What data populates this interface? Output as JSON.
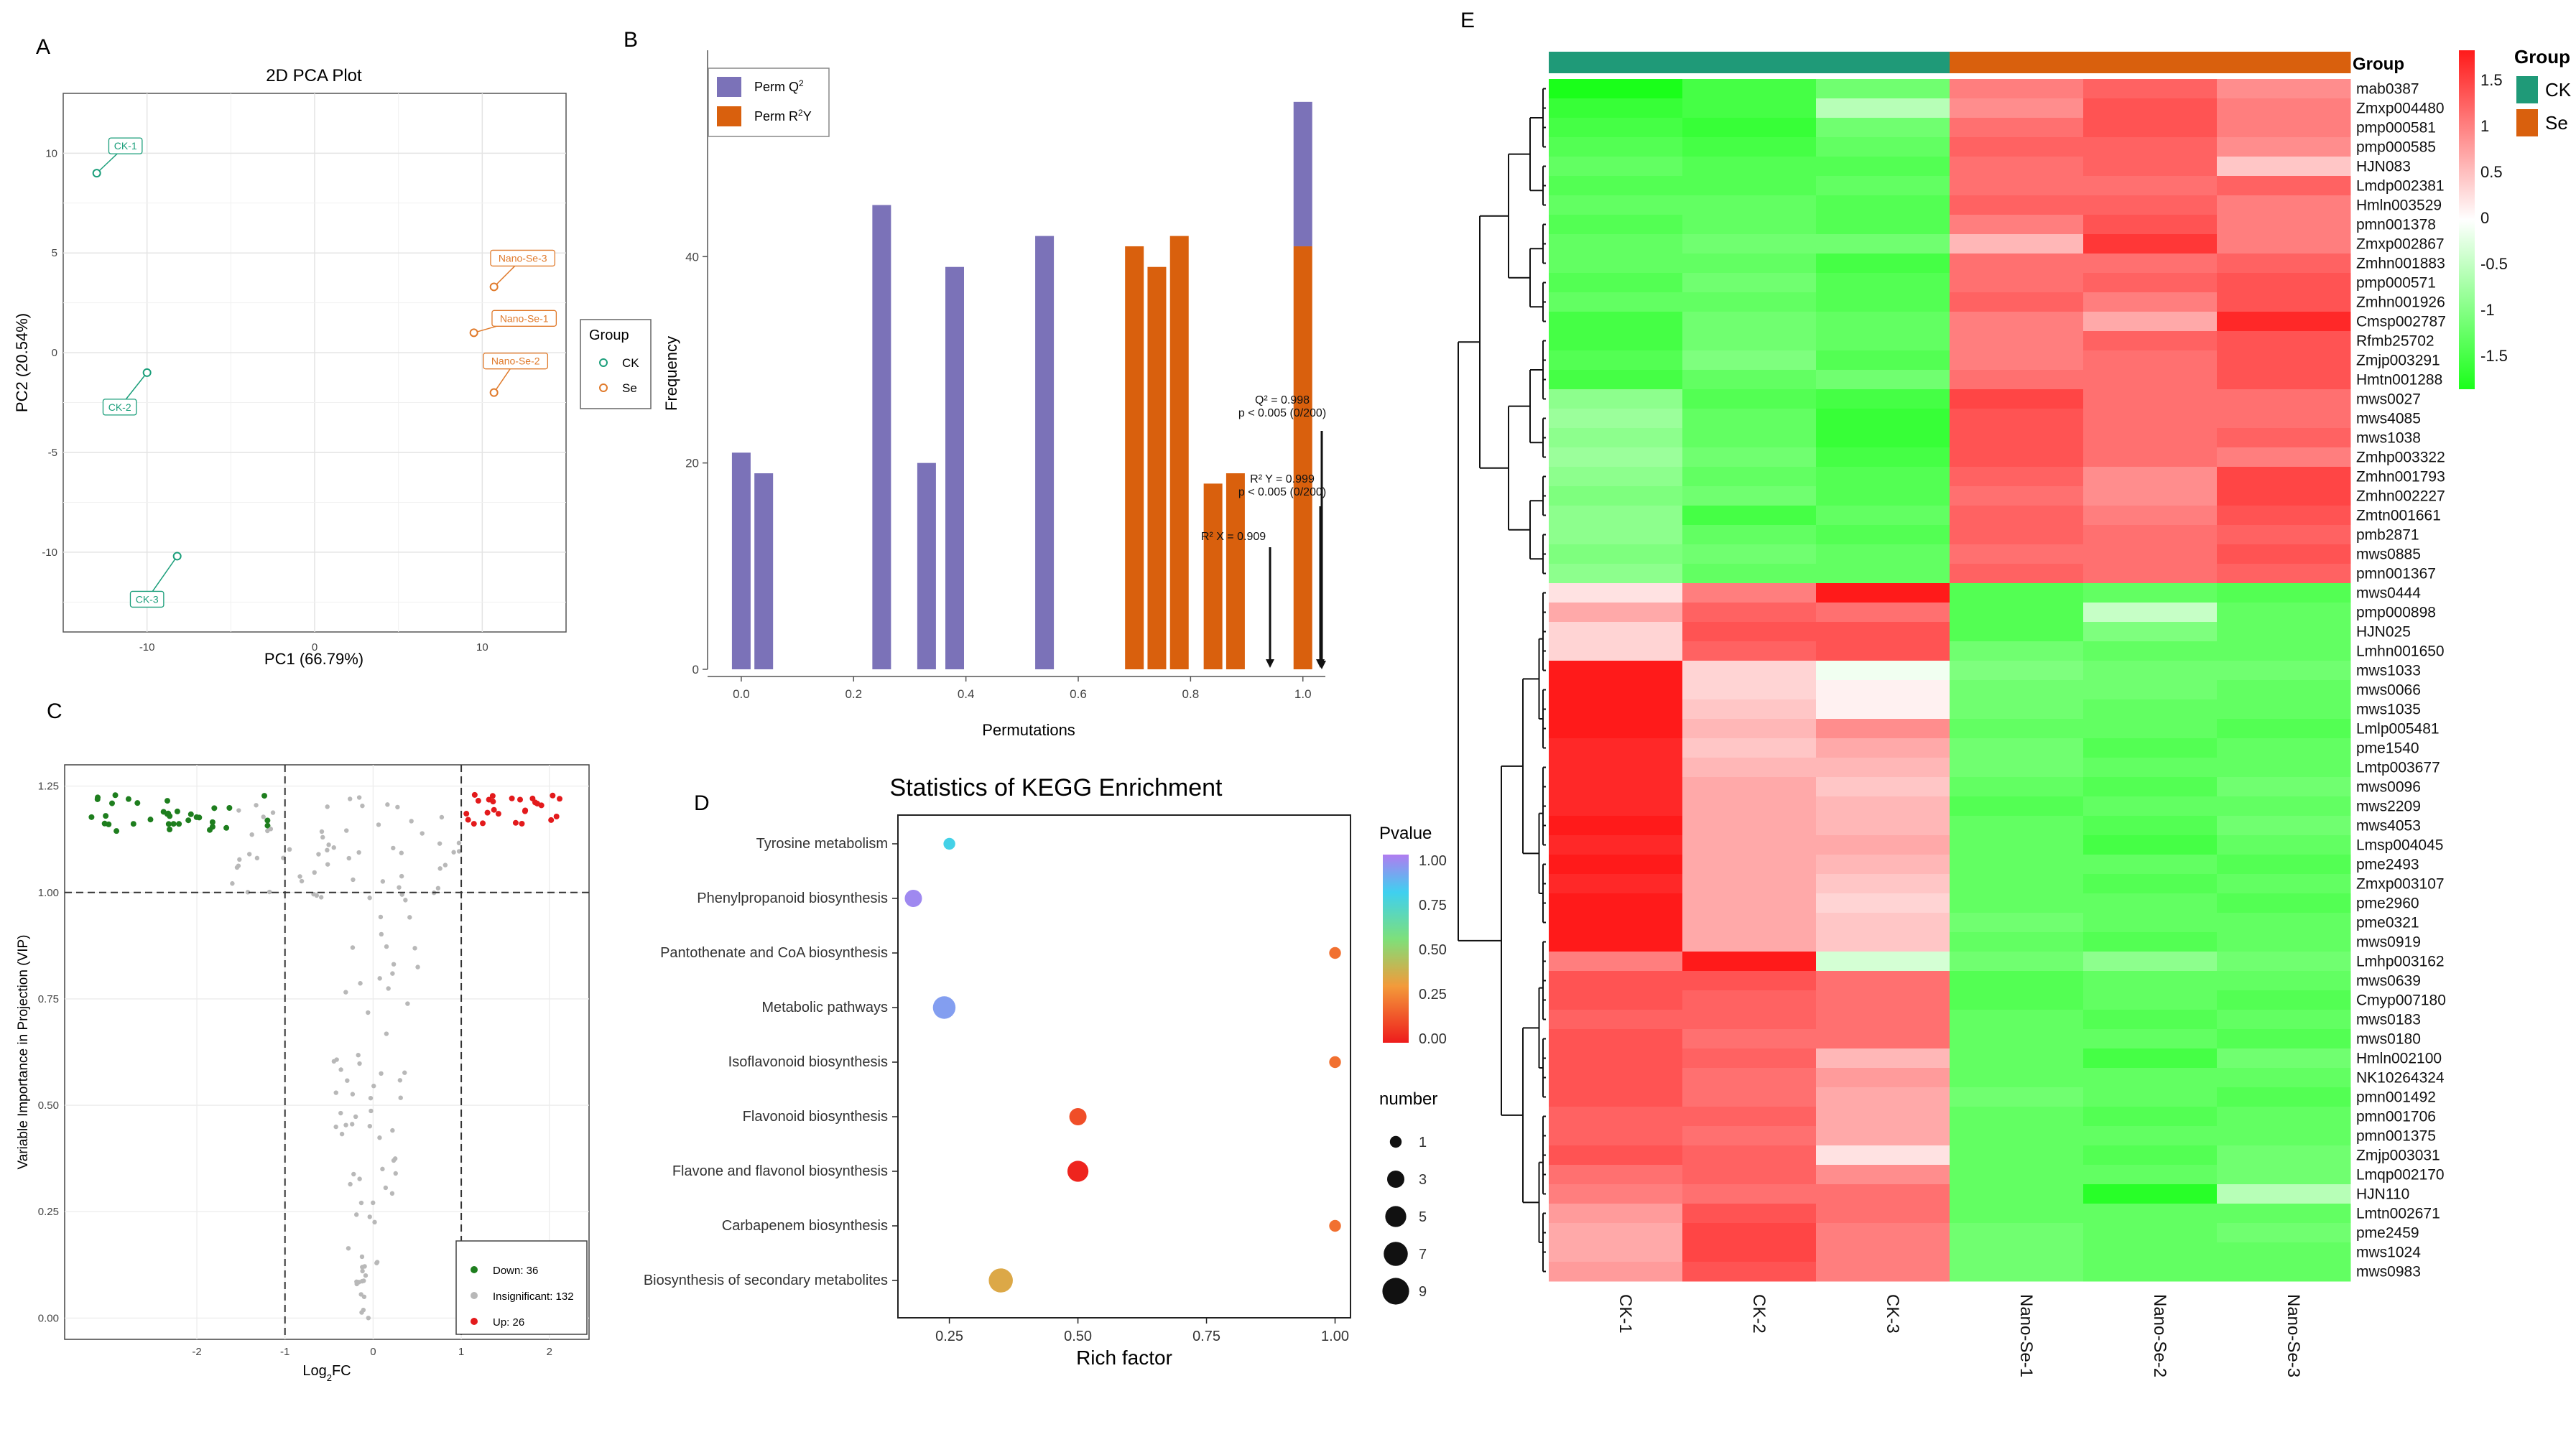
{
  "panels": {
    "A": "A",
    "B": "B",
    "C": "C",
    "D": "D",
    "E": "E"
  },
  "colors": {
    "ck": "#1a9e7a",
    "se": "#e07a2b",
    "perm_q2": "#7b72b8",
    "perm_r2y": "#d9600d",
    "down": "#1e7e1e",
    "up": "#e31a1c",
    "insig": "#b8b8b8"
  },
  "chart_data": [
    {
      "id": "pca",
      "type": "scatter",
      "title": "2D PCA Plot",
      "xlabel": "PC1 (66.79%)",
      "ylabel": "PC2 (20.54%)",
      "xlim": [
        -15,
        15
      ],
      "ylim": [
        -14,
        13
      ],
      "xticks": [
        -10,
        0,
        10
      ],
      "yticks": [
        -10,
        -5,
        0,
        5,
        10
      ],
      "legend_title": "Group",
      "legend": [
        {
          "label": "CK",
          "color": "#1a9e7a"
        },
        {
          "label": "Se",
          "color": "#e07a2b"
        }
      ],
      "points": [
        {
          "label": "CK-1",
          "group": "CK",
          "x": -13,
          "y": 9
        },
        {
          "label": "CK-2",
          "group": "CK",
          "x": -10,
          "y": -1
        },
        {
          "label": "CK-3",
          "group": "CK",
          "x": -8.2,
          "y": -10.2
        },
        {
          "label": "Nano-Se-1",
          "group": "Se",
          "x": 9.5,
          "y": 1
        },
        {
          "label": "Nano-Se-2",
          "group": "Se",
          "x": 10.7,
          "y": -2
        },
        {
          "label": "Nano-Se-3",
          "group": "Se",
          "x": 10.7,
          "y": 3.3
        }
      ]
    },
    {
      "id": "perm",
      "type": "bar",
      "xlabel": "Permutations",
      "ylabel": "Frequency",
      "xlim": [
        -0.06,
        1.04
      ],
      "ylim": [
        0,
        60
      ],
      "xticks": [
        0.0,
        0.2,
        0.4,
        0.6,
        0.8,
        1.0
      ],
      "yticks": [
        0,
        20,
        40
      ],
      "legend": [
        {
          "label": "Perm Q2",
          "color": "#7b72b8"
        },
        {
          "label": "Perm R2Y",
          "color": "#d9600d"
        }
      ],
      "series": [
        {
          "name": "Perm Q2",
          "bars": [
            {
              "x": 0.0,
              "v": 21
            },
            {
              "x": 0.04,
              "v": 19
            },
            {
              "x": 0.25,
              "v": 45
            },
            {
              "x": 0.33,
              "v": 20
            },
            {
              "x": 0.38,
              "v": 39
            },
            {
              "x": 0.54,
              "v": 42
            },
            {
              "x": 1.0,
              "v": 55
            }
          ]
        },
        {
          "name": "Perm R2Y",
          "bars": [
            {
              "x": 0.7,
              "v": 41
            },
            {
              "x": 0.74,
              "v": 39
            },
            {
              "x": 0.78,
              "v": 42
            },
            {
              "x": 0.84,
              "v": 18
            },
            {
              "x": 0.88,
              "v": 19
            },
            {
              "x": 1.0,
              "v": 41
            }
          ]
        }
      ],
      "annotations": [
        {
          "lines": [
            "Q² = 0.998",
            "p < 0.005 (0/200)"
          ],
          "x": 0.998,
          "y": 21
        },
        {
          "lines": [
            "R² Y = 0.999",
            "p < 0.005 (0/200)"
          ],
          "x": 0.999,
          "y": 13
        },
        {
          "lines": [
            "R² X = 0.909"
          ],
          "x": 0.909,
          "y": 11
        }
      ]
    },
    {
      "id": "volcano",
      "type": "scatter",
      "xlabel": "Log2FC",
      "ylabel": "Variable Importance in Projection (VIP)",
      "xlim": [
        -3.5,
        2.45
      ],
      "ylim": [
        -0.05,
        1.3
      ],
      "xticks": [
        -2,
        -1,
        0,
        1,
        2
      ],
      "yticks": [
        0.0,
        0.25,
        0.5,
        0.75,
        1.0,
        1.25
      ],
      "vlines": [
        -1,
        1
      ],
      "hline": 1.0,
      "legend": [
        {
          "label": "Down: 36",
          "color": "#1e7e1e"
        },
        {
          "label": "Insignificant: 132",
          "color": "#b8b8b8"
        },
        {
          "label": "Up: 26",
          "color": "#e31a1c"
        }
      ],
      "counts": {
        "down": 36,
        "insig": 132,
        "up": 26
      }
    },
    {
      "id": "kegg",
      "type": "scatter",
      "title": "Statistics of KEGG Enrichment",
      "xlabel": "Rich factor",
      "xlim": [
        0.15,
        1.03
      ],
      "xticks": [
        0.25,
        0.5,
        0.75,
        1.0
      ],
      "categories": [
        "Tyrosine metabolism",
        "Phenylpropanoid biosynthesis",
        "Pantothenate and CoA biosynthesis",
        "Metabolic pathways",
        "Isoflavonoid biosynthesis",
        "Flavonoid biosynthesis",
        "Flavone and flavonol biosynthesis",
        "Carbapenem biosynthesis",
        "Biosynthesis of secondary metabolites"
      ],
      "points": [
        {
          "category": "Tyrosine metabolism",
          "rich": 0.25,
          "number": 1,
          "p": 0.78
        },
        {
          "category": "Phenylpropanoid biosynthesis",
          "rich": 0.18,
          "number": 3,
          "p": 0.97
        },
        {
          "category": "Pantothenate and CoA biosynthesis",
          "rich": 1.0,
          "number": 1,
          "p": 0.2
        },
        {
          "category": "Metabolic pathways",
          "rich": 0.24,
          "number": 6,
          "p": 0.92
        },
        {
          "category": "Isoflavonoid biosynthesis",
          "rich": 1.0,
          "number": 1,
          "p": 0.2
        },
        {
          "category": "Flavonoid biosynthesis",
          "rich": 0.5,
          "number": 3,
          "p": 0.12
        },
        {
          "category": "Flavone and flavonol biosynthesis",
          "rich": 0.5,
          "number": 5,
          "p": 0.02
        },
        {
          "category": "Carbapenem biosynthesis",
          "rich": 1.0,
          "number": 1,
          "p": 0.2
        },
        {
          "category": "Biosynthesis of secondary metabolites",
          "rich": 0.35,
          "number": 7,
          "p": 0.35
        }
      ],
      "color_legend_title": "Pvalue",
      "color_ticks": [
        "1.00",
        "0.75",
        "0.50",
        "0.25",
        "0.00"
      ],
      "size_legend_title": "number",
      "size_ticks": [
        1,
        3,
        5,
        7,
        9
      ]
    },
    {
      "id": "heatmap",
      "type": "heatmap",
      "columns": [
        "CK-1",
        "CK-2",
        "CK-3",
        "Nano-Se-1",
        "Nano-Se-2",
        "Nano-Se-3"
      ],
      "column_groups": [
        "CK",
        "CK",
        "CK",
        "Se",
        "Se",
        "Se"
      ],
      "group_label": "Group",
      "legend_title": "Group",
      "legend": [
        {
          "label": "CK",
          "color": "#1f9a78"
        },
        {
          "label": "Se",
          "color": "#d9600d"
        }
      ],
      "scale_ticks": [
        "1.5",
        "1",
        "0.5",
        "0",
        "-0.5",
        "-1",
        "-1.5"
      ],
      "scale_values": [
        1.5,
        1,
        0.5,
        0,
        -0.5,
        -1,
        -1.5
      ],
      "rows": [
        "mab0387",
        "Zmxp004480",
        "pmp000581",
        "pmp000585",
        "HJN083",
        "Lmdp002381",
        "Hmln003529",
        "pmn001378",
        "Zmxp002867",
        "Zmhn001883",
        "pmp000571",
        "Zmhn001926",
        "Cmsp002787",
        "Rfmb25702",
        "Zmjp003291",
        "Hmtn001288",
        "mws0027",
        "mws4085",
        "mws1038",
        "Zmhp003322",
        "Zmhn001793",
        "Zmhn002227",
        "Zmtn001661",
        "pmb2871",
        "mws0885",
        "pmn001367",
        "mws0444",
        "pmp000898",
        "HJN025",
        "Lmhn001650",
        "mws1033",
        "mws0066",
        "mws1035",
        "Lmlp005481",
        "pme1540",
        "Lmtp003677",
        "mws0096",
        "mws2209",
        "mws4053",
        "Lmsp004045",
        "pme2493",
        "Zmxp003107",
        "pme2960",
        "pme0321",
        "mws0919",
        "Lmhp003162",
        "mws0639",
        "Cmyp007180",
        "mws0183",
        "mws0180",
        "Hmln002100",
        "NK10264324",
        "pmn001492",
        "pmn001706",
        "pmn001375",
        "Zmjp003031",
        "Lmqp002170",
        "HJN110",
        "Lmtn002671",
        "pme2459",
        "mws1024",
        "mws0983"
      ],
      "values": [
        [
          -1.6,
          -1.3,
          -1.0,
          0.9,
          1.1,
          0.8
        ],
        [
          -1.4,
          -1.3,
          -0.5,
          0.8,
          1.2,
          0.9
        ],
        [
          -1.3,
          -1.4,
          -1.0,
          1.0,
          1.2,
          0.9
        ],
        [
          -1.2,
          -1.3,
          -1.1,
          1.1,
          1.1,
          0.8
        ],
        [
          -1.1,
          -1.2,
          -1.2,
          1.0,
          1.1,
          0.4
        ],
        [
          -1.2,
          -1.2,
          -1.1,
          1.0,
          1.0,
          1.1
        ],
        [
          -1.1,
          -1.1,
          -1.2,
          1.1,
          1.1,
          0.9
        ],
        [
          -1.2,
          -1.1,
          -1.2,
          0.9,
          1.2,
          0.9
        ],
        [
          -1.1,
          -1.0,
          -1.0,
          0.5,
          1.4,
          0.9
        ],
        [
          -1.1,
          -1.1,
          -1.3,
          1.0,
          1.0,
          1.1
        ],
        [
          -1.2,
          -1.0,
          -1.2,
          1.0,
          1.1,
          1.2
        ],
        [
          -1.1,
          -1.1,
          -1.2,
          1.1,
          0.9,
          1.2
        ],
        [
          -1.3,
          -1.0,
          -1.1,
          0.9,
          0.6,
          1.5
        ],
        [
          -1.3,
          -1.0,
          -1.1,
          0.9,
          1.1,
          1.2
        ],
        [
          -1.2,
          -0.9,
          -1.2,
          0.9,
          1.0,
          1.2
        ],
        [
          -1.3,
          -1.1,
          -1.0,
          1.0,
          1.0,
          1.2
        ],
        [
          -0.8,
          -1.2,
          -1.3,
          1.3,
          1.0,
          1.0
        ],
        [
          -0.7,
          -1.1,
          -1.4,
          1.2,
          1.0,
          1.0
        ],
        [
          -0.8,
          -1.1,
          -1.4,
          1.2,
          1.0,
          1.1
        ],
        [
          -0.7,
          -1.0,
          -1.3,
          1.2,
          1.0,
          0.9
        ],
        [
          -0.8,
          -1.1,
          -1.2,
          1.1,
          0.8,
          1.3
        ],
        [
          -0.9,
          -1.0,
          -1.2,
          1.0,
          0.8,
          1.3
        ],
        [
          -0.8,
          -1.3,
          -1.1,
          1.1,
          0.9,
          1.2
        ],
        [
          -0.8,
          -1.1,
          -1.2,
          1.1,
          1.0,
          1.1
        ],
        [
          -0.9,
          -1.0,
          -1.1,
          1.0,
          1.0,
          1.2
        ],
        [
          -0.8,
          -1.1,
          -1.1,
          1.1,
          1.0,
          1.1
        ],
        [
          0.2,
          0.9,
          1.6,
          -1.2,
          -1.1,
          -1.2
        ],
        [
          0.6,
          1.1,
          1.0,
          -1.2,
          -0.4,
          -1.1
        ],
        [
          0.3,
          1.2,
          1.2,
          -1.2,
          -0.9,
          -1.1
        ],
        [
          0.3,
          1.1,
          1.2,
          -1.0,
          -1.1,
          -1.1
        ],
        [
          1.8,
          0.3,
          -0.1,
          -0.9,
          -1.0,
          -1.0
        ],
        [
          1.8,
          0.3,
          0.1,
          -1.0,
          -1.0,
          -1.1
        ],
        [
          1.8,
          0.4,
          0.1,
          -1.0,
          -1.1,
          -1.1
        ],
        [
          1.6,
          0.5,
          0.8,
          -1.1,
          -1.1,
          -1.2
        ],
        [
          1.5,
          0.4,
          0.6,
          -1.0,
          -1.2,
          -1.1
        ],
        [
          1.5,
          0.5,
          0.5,
          -1.0,
          -1.1,
          -1.1
        ],
        [
          1.5,
          0.6,
          0.4,
          -1.1,
          -1.2,
          -1.0
        ],
        [
          1.5,
          0.6,
          0.5,
          -1.2,
          -1.1,
          -1.1
        ],
        [
          1.6,
          0.6,
          0.5,
          -1.1,
          -1.2,
          -1.0
        ],
        [
          1.5,
          0.6,
          0.6,
          -1.1,
          -1.3,
          -1.1
        ],
        [
          1.6,
          0.6,
          0.5,
          -1.1,
          -1.1,
          -1.2
        ],
        [
          1.5,
          0.6,
          0.4,
          -1.1,
          -1.2,
          -1.1
        ],
        [
          1.6,
          0.6,
          0.3,
          -1.1,
          -1.1,
          -1.2
        ],
        [
          1.6,
          0.6,
          0.4,
          -1.0,
          -1.1,
          -1.1
        ],
        [
          1.6,
          0.6,
          0.4,
          -1.1,
          -1.2,
          -1.1
        ],
        [
          0.9,
          1.7,
          -0.3,
          -1.0,
          -0.8,
          -1.0
        ],
        [
          1.2,
          1.2,
          1.0,
          -1.2,
          -1.1,
          -1.1
        ],
        [
          1.2,
          1.1,
          1.0,
          -1.2,
          -1.1,
          -1.2
        ],
        [
          1.1,
          1.1,
          1.0,
          -1.1,
          -1.2,
          -1.1
        ],
        [
          1.2,
          1.0,
          1.0,
          -1.1,
          -1.1,
          -1.2
        ],
        [
          1.2,
          1.1,
          0.5,
          -1.1,
          -1.3,
          -1.0
        ],
        [
          1.2,
          1.0,
          0.7,
          -1.1,
          -1.1,
          -1.1
        ],
        [
          1.2,
          1.0,
          0.6,
          -1.0,
          -1.1,
          -1.2
        ],
        [
          1.1,
          1.1,
          0.6,
          -1.1,
          -1.2,
          -1.1
        ],
        [
          1.1,
          1.0,
          0.6,
          -1.1,
          -1.1,
          -1.1
        ],
        [
          1.2,
          1.1,
          0.2,
          -1.1,
          -1.2,
          -1.0
        ],
        [
          1.0,
          1.1,
          0.8,
          -1.1,
          -1.1,
          -1.0
        ],
        [
          0.9,
          1.0,
          1.0,
          -1.1,
          -1.5,
          -0.5
        ],
        [
          0.7,
          1.2,
          1.0,
          -1.1,
          -1.1,
          -1.1
        ],
        [
          0.6,
          1.3,
          0.9,
          -1.0,
          -1.1,
          -1.0
        ],
        [
          0.6,
          1.3,
          0.9,
          -1.0,
          -1.1,
          -1.1
        ],
        [
          0.7,
          1.2,
          0.9,
          -1.0,
          -1.1,
          -1.1
        ]
      ]
    }
  ]
}
